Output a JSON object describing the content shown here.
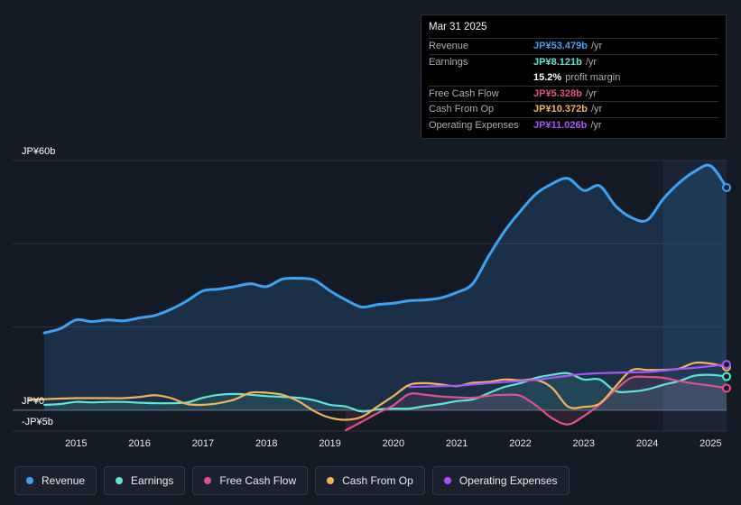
{
  "tooltip": {
    "date": "Mar 31 2025",
    "rows": [
      {
        "label": "Revenue",
        "value": "JP¥53.479b",
        "unit": "/yr",
        "color": "#3ea2f2"
      },
      {
        "label": "Earnings",
        "value": "JP¥8.121b",
        "unit": "/yr",
        "color": "#5fe6d3"
      },
      {
        "label": "",
        "value": "15.2%",
        "unit": "profit margin",
        "color": "#ffffff"
      },
      {
        "label": "Free Cash Flow",
        "value": "JP¥5.328b",
        "unit": "/yr",
        "color": "#e2508a"
      },
      {
        "label": "Cash From Op",
        "value": "JP¥10.372b",
        "unit": "/yr",
        "color": "#f0b45c"
      },
      {
        "label": "Operating Expenses",
        "value": "JP¥11.026b",
        "unit": "/yr",
        "color": "#a855f7"
      }
    ]
  },
  "legend": [
    {
      "label": "Revenue",
      "color": "#3ea2f2"
    },
    {
      "label": "Earnings",
      "color": "#5fe6d3"
    },
    {
      "label": "Free Cash Flow",
      "color": "#e2508a"
    },
    {
      "label": "Cash From Op",
      "color": "#f0b45c"
    },
    {
      "label": "Operating Expenses",
      "color": "#a855f7"
    }
  ],
  "chart_data": {
    "type": "line",
    "title": "",
    "xlabel": "",
    "ylabel": "",
    "unit": "JP¥ billions",
    "xlim": [
      2014.0,
      2025.25
    ],
    "ylim": [
      -5,
      60
    ],
    "y_tick_labels": [
      {
        "value": 60,
        "label": "JP¥60b"
      },
      {
        "value": 0,
        "label": "JP¥0"
      },
      {
        "value": -5,
        "label": "-JP¥5b"
      }
    ],
    "x_ticks": [
      2015,
      2016,
      2017,
      2018,
      2019,
      2020,
      2021,
      2022,
      2023,
      2024,
      2025
    ],
    "highlight_from": 2024.25,
    "series": [
      {
        "name": "Revenue",
        "color": "#3ea2f2",
        "fill": true,
        "points": [
          [
            2014.5,
            18.6
          ],
          [
            2014.75,
            19.6
          ],
          [
            2015.0,
            21.7
          ],
          [
            2015.25,
            21.3
          ],
          [
            2015.5,
            21.7
          ],
          [
            2015.75,
            21.5
          ],
          [
            2016.0,
            22.2
          ],
          [
            2016.25,
            22.8
          ],
          [
            2016.5,
            24.3
          ],
          [
            2016.75,
            26.3
          ],
          [
            2017.0,
            28.7
          ],
          [
            2017.25,
            29.1
          ],
          [
            2017.5,
            29.7
          ],
          [
            2017.75,
            30.4
          ],
          [
            2018.0,
            29.7
          ],
          [
            2018.25,
            31.5
          ],
          [
            2018.5,
            31.7
          ],
          [
            2018.75,
            31.3
          ],
          [
            2019.0,
            28.7
          ],
          [
            2019.25,
            26.5
          ],
          [
            2019.5,
            24.8
          ],
          [
            2019.75,
            25.4
          ],
          [
            2020.0,
            25.7
          ],
          [
            2020.25,
            26.3
          ],
          [
            2020.5,
            26.5
          ],
          [
            2020.75,
            27.0
          ],
          [
            2021.0,
            28.3
          ],
          [
            2021.25,
            30.4
          ],
          [
            2021.5,
            37.0
          ],
          [
            2021.75,
            43.0
          ],
          [
            2022.0,
            47.8
          ],
          [
            2022.25,
            52.0
          ],
          [
            2022.5,
            54.4
          ],
          [
            2022.75,
            55.7
          ],
          [
            2023.0,
            52.8
          ],
          [
            2023.25,
            53.9
          ],
          [
            2023.5,
            49.1
          ],
          [
            2023.75,
            46.3
          ],
          [
            2024.0,
            45.7
          ],
          [
            2024.25,
            50.7
          ],
          [
            2024.5,
            54.6
          ],
          [
            2024.75,
            57.4
          ],
          [
            2025.0,
            58.7
          ],
          [
            2025.25,
            53.5
          ]
        ]
      },
      {
        "name": "Earnings",
        "color": "#5fe6d3",
        "fill": true,
        "points": [
          [
            2014.5,
            1.3
          ],
          [
            2014.75,
            1.5
          ],
          [
            2015.0,
            2.0
          ],
          [
            2015.25,
            1.9
          ],
          [
            2015.5,
            2.0
          ],
          [
            2015.75,
            2.0
          ],
          [
            2016.0,
            1.8
          ],
          [
            2016.25,
            1.7
          ],
          [
            2016.5,
            1.7
          ],
          [
            2016.75,
            1.9
          ],
          [
            2017.0,
            3.0
          ],
          [
            2017.25,
            3.7
          ],
          [
            2017.5,
            3.9
          ],
          [
            2017.75,
            3.7
          ],
          [
            2018.0,
            3.4
          ],
          [
            2018.25,
            3.2
          ],
          [
            2018.5,
            3.0
          ],
          [
            2018.75,
            2.4
          ],
          [
            2019.0,
            1.3
          ],
          [
            2019.25,
            0.9
          ],
          [
            2019.5,
            -0.3
          ],
          [
            2019.75,
            0.2
          ],
          [
            2020.0,
            0.4
          ],
          [
            2020.25,
            0.4
          ],
          [
            2020.5,
            1.0
          ],
          [
            2020.75,
            1.5
          ],
          [
            2021.0,
            2.2
          ],
          [
            2021.25,
            2.6
          ],
          [
            2021.5,
            4.1
          ],
          [
            2021.75,
            5.6
          ],
          [
            2022.0,
            6.5
          ],
          [
            2022.25,
            7.8
          ],
          [
            2022.5,
            8.5
          ],
          [
            2022.75,
            8.9
          ],
          [
            2023.0,
            7.4
          ],
          [
            2023.25,
            7.4
          ],
          [
            2023.5,
            4.6
          ],
          [
            2023.75,
            4.5
          ],
          [
            2024.0,
            5.0
          ],
          [
            2024.25,
            6.1
          ],
          [
            2024.5,
            7.0
          ],
          [
            2024.75,
            8.3
          ],
          [
            2025.0,
            8.5
          ],
          [
            2025.25,
            8.1
          ]
        ]
      },
      {
        "name": "Free Cash Flow",
        "color": "#e2508a",
        "fill": true,
        "points": [
          [
            2019.25,
            -4.8
          ],
          [
            2019.5,
            -2.8
          ],
          [
            2019.75,
            -0.7
          ],
          [
            2020.0,
            1.2
          ],
          [
            2020.25,
            3.9
          ],
          [
            2020.5,
            3.7
          ],
          [
            2020.75,
            3.3
          ],
          [
            2021.0,
            3.1
          ],
          [
            2021.25,
            3.0
          ],
          [
            2021.5,
            3.5
          ],
          [
            2021.75,
            3.7
          ],
          [
            2022.0,
            3.5
          ],
          [
            2022.25,
            1.1
          ],
          [
            2022.5,
            -1.9
          ],
          [
            2022.75,
            -3.4
          ],
          [
            2023.0,
            -1.4
          ],
          [
            2023.25,
            1.4
          ],
          [
            2023.5,
            4.9
          ],
          [
            2023.75,
            7.8
          ],
          [
            2024.0,
            8.0
          ],
          [
            2024.25,
            7.8
          ],
          [
            2024.5,
            7.0
          ],
          [
            2024.75,
            6.4
          ],
          [
            2025.0,
            5.9
          ],
          [
            2025.25,
            5.3
          ]
        ]
      },
      {
        "name": "Cash From Op",
        "color": "#f0b45c",
        "fill": false,
        "points": [
          [
            2014.25,
            2.5
          ],
          [
            2014.75,
            2.8
          ],
          [
            2015.0,
            2.9
          ],
          [
            2015.25,
            2.9
          ],
          [
            2015.5,
            2.9
          ],
          [
            2015.75,
            2.9
          ],
          [
            2016.0,
            3.2
          ],
          [
            2016.25,
            3.6
          ],
          [
            2016.5,
            2.9
          ],
          [
            2016.75,
            1.5
          ],
          [
            2017.0,
            1.3
          ],
          [
            2017.25,
            1.7
          ],
          [
            2017.5,
            2.6
          ],
          [
            2017.75,
            4.2
          ],
          [
            2018.0,
            4.2
          ],
          [
            2018.25,
            3.7
          ],
          [
            2018.5,
            2.2
          ],
          [
            2018.75,
            -0.2
          ],
          [
            2019.0,
            -1.8
          ],
          [
            2019.25,
            -2.3
          ],
          [
            2019.5,
            -1.6
          ],
          [
            2019.75,
            0.9
          ],
          [
            2020.0,
            3.4
          ],
          [
            2020.25,
            6.1
          ],
          [
            2020.5,
            6.5
          ],
          [
            2020.75,
            6.2
          ],
          [
            2021.0,
            5.8
          ],
          [
            2021.25,
            6.6
          ],
          [
            2021.5,
            6.8
          ],
          [
            2021.75,
            7.4
          ],
          [
            2022.0,
            7.2
          ],
          [
            2022.25,
            7.3
          ],
          [
            2022.5,
            5.4
          ],
          [
            2022.75,
            0.9
          ],
          [
            2023.0,
            0.8
          ],
          [
            2023.25,
            1.6
          ],
          [
            2023.5,
            5.7
          ],
          [
            2023.75,
            9.6
          ],
          [
            2024.0,
            9.7
          ],
          [
            2024.25,
            9.7
          ],
          [
            2024.5,
            10.0
          ],
          [
            2024.75,
            11.4
          ],
          [
            2025.0,
            11.2
          ],
          [
            2025.25,
            10.4
          ]
        ]
      },
      {
        "name": "Operating Expenses",
        "color": "#a855f7",
        "fill": false,
        "points": [
          [
            2020.25,
            5.6
          ],
          [
            2020.5,
            5.7
          ],
          [
            2020.75,
            5.8
          ],
          [
            2021.0,
            5.9
          ],
          [
            2021.25,
            6.2
          ],
          [
            2021.5,
            6.5
          ],
          [
            2021.75,
            6.8
          ],
          [
            2022.0,
            7.0
          ],
          [
            2022.25,
            7.3
          ],
          [
            2022.5,
            7.8
          ],
          [
            2022.75,
            8.3
          ],
          [
            2023.0,
            8.7
          ],
          [
            2023.25,
            8.9
          ],
          [
            2023.5,
            9.0
          ],
          [
            2023.75,
            9.1
          ],
          [
            2024.0,
            9.2
          ],
          [
            2024.25,
            9.5
          ],
          [
            2024.5,
            9.9
          ],
          [
            2024.75,
            10.2
          ],
          [
            2025.0,
            10.6
          ],
          [
            2025.25,
            11.0
          ]
        ]
      }
    ]
  }
}
